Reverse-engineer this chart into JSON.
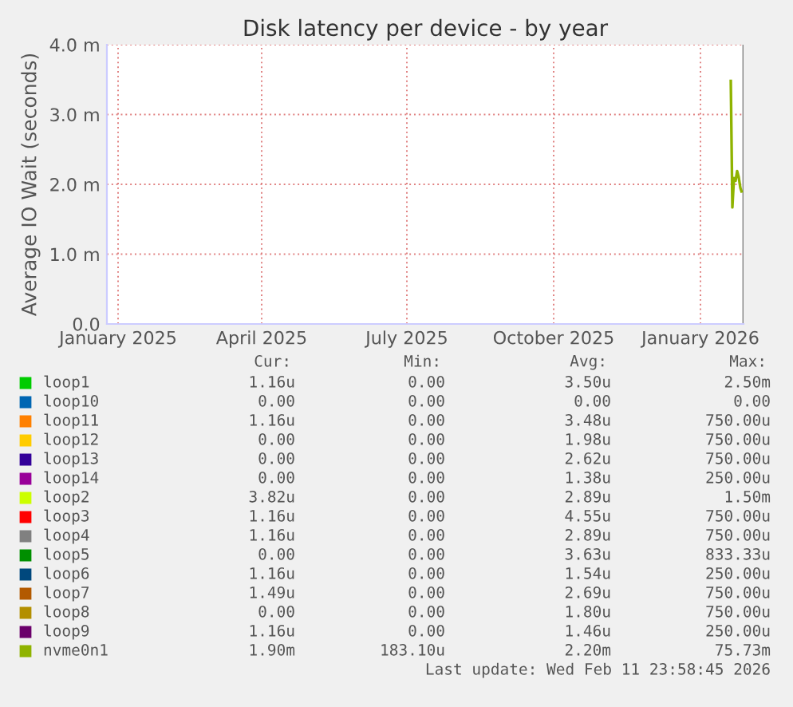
{
  "chart_data": {
    "type": "line",
    "title": "Disk latency per device - by year",
    "ylabel": "Average IO Wait (seconds)",
    "x": [
      "2026-01-20",
      "2026-01-21",
      "2026-01-22",
      "2026-01-23",
      "2026-01-24",
      "2026-01-25",
      "2026-01-26",
      "2026-01-27"
    ],
    "xlim": [
      "2024-12-25",
      "2026-01-28"
    ],
    "xticks": [
      {
        "value": "2025-01-01",
        "label": "January 2025"
      },
      {
        "value": "2025-04-01",
        "label": "April 2025"
      },
      {
        "value": "2025-07-01",
        "label": "July 2025"
      },
      {
        "value": "2025-10-01",
        "label": "October 2025"
      },
      {
        "value": "2026-01-01",
        "label": "January 2026"
      }
    ],
    "ylim": [
      0,
      4
    ],
    "yticks": [
      {
        "value": 0,
        "label": "0.0"
      },
      {
        "value": 1,
        "label": "1.0 m"
      },
      {
        "value": 2,
        "label": "2.0 m"
      },
      {
        "value": 3,
        "label": "3.0 m"
      },
      {
        "value": 4,
        "label": "4.0 m"
      }
    ],
    "grid": true,
    "legend": "bottom",
    "series": [
      {
        "name": "loop1",
        "color": "#00cc00",
        "values": [
          null,
          null,
          null,
          null,
          null,
          null,
          null,
          null
        ]
      },
      {
        "name": "loop10",
        "color": "#0066b3",
        "values": [
          null,
          null,
          null,
          null,
          null,
          null,
          null,
          null
        ]
      },
      {
        "name": "loop11",
        "color": "#ff8000",
        "values": [
          null,
          null,
          null,
          null,
          null,
          null,
          null,
          null
        ]
      },
      {
        "name": "loop12",
        "color": "#ffcc00",
        "values": [
          null,
          null,
          null,
          null,
          null,
          null,
          null,
          null
        ]
      },
      {
        "name": "loop13",
        "color": "#330099",
        "values": [
          null,
          null,
          null,
          null,
          null,
          null,
          null,
          null
        ]
      },
      {
        "name": "loop14",
        "color": "#990099",
        "values": [
          null,
          null,
          null,
          null,
          null,
          null,
          null,
          null
        ]
      },
      {
        "name": "loop2",
        "color": "#ccff00",
        "values": [
          null,
          null,
          null,
          null,
          null,
          null,
          null,
          null
        ]
      },
      {
        "name": "loop3",
        "color": "#ff0000",
        "values": [
          null,
          null,
          null,
          null,
          null,
          null,
          null,
          null
        ]
      },
      {
        "name": "loop4",
        "color": "#808080",
        "values": [
          null,
          null,
          null,
          null,
          null,
          null,
          null,
          null
        ]
      },
      {
        "name": "loop5",
        "color": "#008f00",
        "values": [
          null,
          null,
          null,
          null,
          null,
          null,
          null,
          null
        ]
      },
      {
        "name": "loop6",
        "color": "#00487d",
        "values": [
          null,
          null,
          null,
          null,
          null,
          null,
          null,
          null
        ]
      },
      {
        "name": "loop7",
        "color": "#b35a00",
        "values": [
          null,
          null,
          null,
          null,
          null,
          null,
          null,
          null
        ]
      },
      {
        "name": "loop8",
        "color": "#b38f00",
        "values": [
          null,
          null,
          null,
          null,
          null,
          null,
          null,
          null
        ]
      },
      {
        "name": "loop9",
        "color": "#6b006b",
        "values": [
          null,
          null,
          null,
          null,
          null,
          null,
          null,
          null
        ]
      },
      {
        "name": "nvme0n1",
        "color": "#8fb300",
        "values": [
          3.5,
          1.67,
          2.09,
          2.05,
          2.19,
          2.1,
          1.95,
          1.88
        ]
      }
    ],
    "annotations": [
      "Cur:",
      "Min:",
      "Avg:",
      "Max:",
      "1.16u",
      "0.00",
      "3.50u",
      "2.50m",
      "0.00",
      "0.00",
      "0.00",
      "0.00",
      "1.16u",
      "0.00",
      "3.48u",
      "750.00u",
      "0.00",
      "0.00",
      "1.98u",
      "750.00u",
      "0.00",
      "0.00",
      "2.62u",
      "750.00u",
      "0.00",
      "0.00",
      "1.38u",
      "250.00u",
      "3.82u",
      "0.00",
      "2.89u",
      "1.50m",
      "1.16u",
      "0.00",
      "4.55u",
      "750.00u",
      "1.16u",
      "0.00",
      "2.89u",
      "750.00u",
      "0.00",
      "0.00",
      "3.63u",
      "833.33u",
      "1.16u",
      "0.00",
      "1.54u",
      "250.00u",
      "1.49u",
      "0.00",
      "2.69u",
      "750.00u",
      "0.00",
      "0.00",
      "1.80u",
      "750.00u",
      "1.16u",
      "0.00",
      "1.46u",
      "250.00u",
      "1.90m",
      "183.10u",
      "2.20m",
      "75.73m",
      "Last update: Wed Feb 11 23:58:45 2026"
    ]
  }
}
